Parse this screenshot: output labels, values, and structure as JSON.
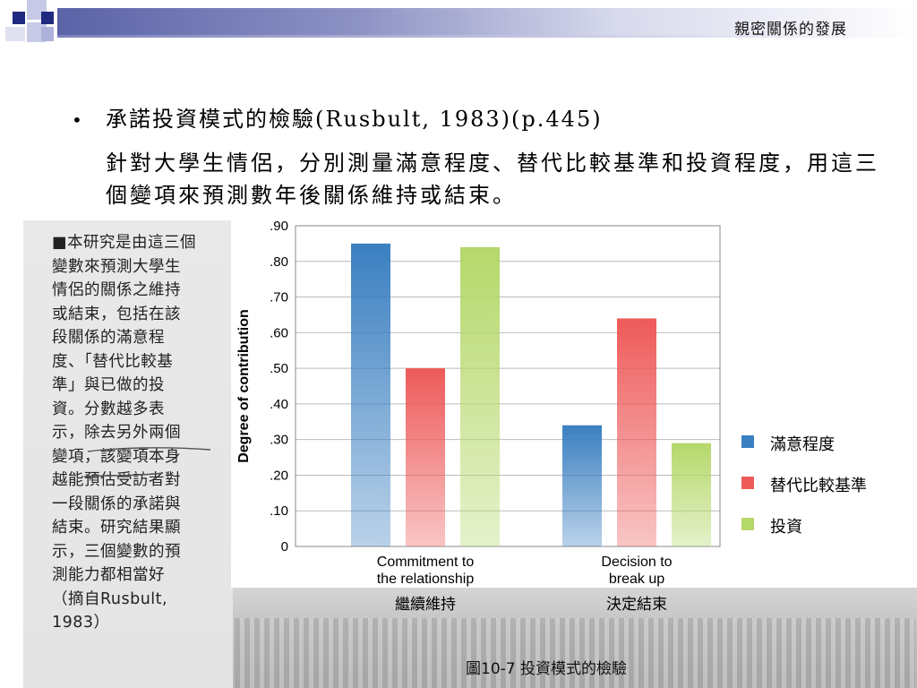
{
  "header": {
    "title": "親密關係的發展"
  },
  "bullet": {
    "marker": "•",
    "heading": "承諾投資模式的檢驗(Rusbult, 1983)(p.445)",
    "body": "針對大學生情侶，分別測量滿意程度、替代比較基準和投資程度，用這三個變項來預測數年後關係維持或結束。"
  },
  "side_note": {
    "lines": [
      "■本研究是由這三個",
      "變數來預測大學生",
      "情侶的關係之維持",
      "或結束，包括在該",
      "段關係的滿意程",
      "度、「替代比較基",
      "準」與已做的投",
      "資。分數越多表",
      "示，除去另外兩個",
      "變項，該變項本身",
      "越能預估受訪者對",
      "一段關係的承諾與",
      "結束。研究結果顯",
      "示，三個變數的預",
      "測能力都相當好",
      "（摘自Rusbult,",
      "1983）"
    ]
  },
  "figure_caption": "圖10-7  投資模式的檢驗",
  "colors": {
    "satisfaction": "#3a7fc1",
    "alternatives": "#ee5a5a",
    "investment": "#b5d86a",
    "grid": "#bbbbbb"
  },
  "chart_data": {
    "type": "bar",
    "ylabel": "Degree of contribution",
    "ylim": [
      0,
      0.9
    ],
    "yticks": [
      ".90",
      ".80",
      ".70",
      ".60",
      ".50",
      ".40",
      ".30",
      ".20",
      ".10",
      "0"
    ],
    "grid": true,
    "categories": [
      "Commitment to\nthe relationship",
      "Decision to\nbreak up"
    ],
    "category_labels_zh": [
      "繼續維持",
      "決定結束"
    ],
    "series": [
      {
        "name": "滿意程度",
        "values": [
          0.85,
          0.34
        ]
      },
      {
        "name": "替代比較基準",
        "values": [
          0.5,
          0.64
        ]
      },
      {
        "name": "投資",
        "values": [
          0.84,
          0.29
        ]
      }
    ],
    "legend_position": "right"
  }
}
